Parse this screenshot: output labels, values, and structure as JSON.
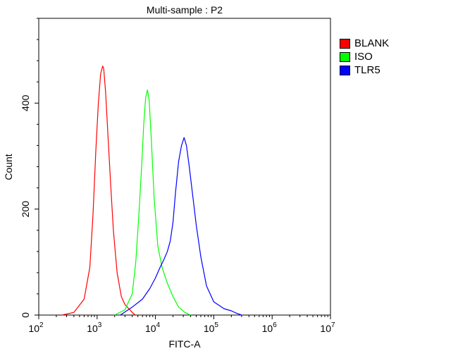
{
  "chart_data": {
    "type": "line",
    "title": "Multi-sample : P2",
    "xlabel": "FITC-A",
    "ylabel": "Count",
    "x_scale": "log10",
    "xlim": [
      100,
      10000000
    ],
    "ylim": [
      0,
      560
    ],
    "x_ticks": [
      {
        "value": 100,
        "base": "10",
        "exp": "2"
      },
      {
        "value": 1000,
        "base": "10",
        "exp": "3"
      },
      {
        "value": 10000,
        "base": "10",
        "exp": "4"
      },
      {
        "value": 100000,
        "base": "10",
        "exp": "5"
      },
      {
        "value": 1000000,
        "base": "10",
        "exp": "6"
      },
      {
        "value": 10000000,
        "base": "10",
        "exp": "7"
      }
    ],
    "y_ticks": [
      0,
      200,
      400
    ],
    "legend_position": "top-right, outside plot",
    "series": [
      {
        "name": "BLANK",
        "color": "#ff0000",
        "x": [
          250,
          400,
          600,
          750,
          850,
          950,
          1050,
          1150,
          1250,
          1300,
          1400,
          1550,
          1700,
          1900,
          2200,
          2600,
          3000,
          3500,
          4000,
          4500
        ],
        "y": [
          0,
          5,
          30,
          90,
          190,
          310,
          400,
          455,
          470,
          465,
          420,
          330,
          250,
          160,
          80,
          35,
          20,
          12,
          5,
          0
        ]
      },
      {
        "name": "ISO",
        "color": "#00ff00",
        "x": [
          2000,
          3000,
          4000,
          4600,
          5200,
          5800,
          6300,
          6800,
          7300,
          7800,
          8500,
          9500,
          11000,
          13000,
          16000,
          20000,
          25000,
          32000,
          40000
        ],
        "y": [
          0,
          10,
          40,
          100,
          190,
          280,
          360,
          410,
          425,
          405,
          330,
          220,
          130,
          90,
          60,
          35,
          15,
          5,
          0
        ]
      },
      {
        "name": "TLR5",
        "color": "#0000ff",
        "x": [
          2500,
          4000,
          6000,
          8000,
          10000,
          12000,
          14000,
          16000,
          18000,
          20000,
          22000,
          25000,
          28000,
          31000,
          34000,
          38000,
          43000,
          50000,
          60000,
          75000,
          100000,
          150000,
          200000,
          250000,
          300000
        ],
        "y": [
          0,
          15,
          30,
          50,
          70,
          90,
          105,
          120,
          140,
          175,
          230,
          290,
          320,
          335,
          320,
          280,
          230,
          170,
          110,
          55,
          25,
          12,
          8,
          3,
          0
        ]
      }
    ]
  }
}
